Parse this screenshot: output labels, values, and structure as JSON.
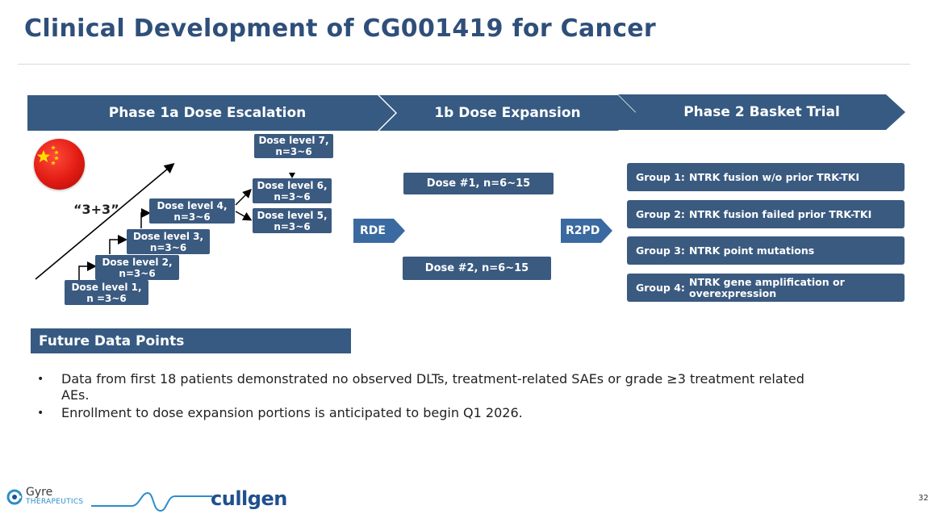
{
  "title": "Clinical Development of CG001419 for Cancer",
  "phases": {
    "p1a": "Phase 1a Dose Escalation",
    "p1b": "1b Dose Expansion",
    "p2": "Phase 2 Basket Trial"
  },
  "escalation": {
    "scheme_label": "“3+3”",
    "levels": [
      "Dose level 1,\nn =3~6",
      "Dose level 2,\nn=3~6",
      "Dose level 3,\nn=3~6",
      "Dose level 4,\nn=3~6",
      "Dose level 5,\nn=3~6",
      "Dose level 6,\nn=3~6",
      "Dose level 7,\nn=3~6"
    ]
  },
  "arrows": {
    "rde": "RDE",
    "r2pd": "R2PD"
  },
  "expansion": {
    "dose1": "Dose #1, n=6~15",
    "dose2": "Dose #2, n=6~15"
  },
  "groups": [
    {
      "name": "Group 1:",
      "desc": "NTRK fusion w/o prior TRK-TKI"
    },
    {
      "name": "Group 2:",
      "desc": "NTRK fusion failed prior TRK-TKI"
    },
    {
      "name": "Group 3:",
      "desc": "NTRK point mutations"
    },
    {
      "name": "Group 4:",
      "desc": "NTRK gene amplification or overexpression"
    }
  ],
  "future": {
    "header": "Future Data Points",
    "bullets": [
      "Data from first 18 patients demonstrated no observed DLTs, treatment-related SAEs or grade ≥3 treatment related AEs.",
      "Enrollment to dose expansion portions is anticipated to begin Q1 2026."
    ]
  },
  "footer": {
    "gyre_name": "Gyre",
    "gyre_sub": "THERAPEUTICS",
    "cullgen": "cullgen",
    "page": "32"
  },
  "colors": {
    "primary": "#365a82",
    "title": "#2f4f7a",
    "flag_red": "#e11b13",
    "flag_star": "#ffde00"
  },
  "icons": {
    "flag": "china-flag-icon"
  }
}
